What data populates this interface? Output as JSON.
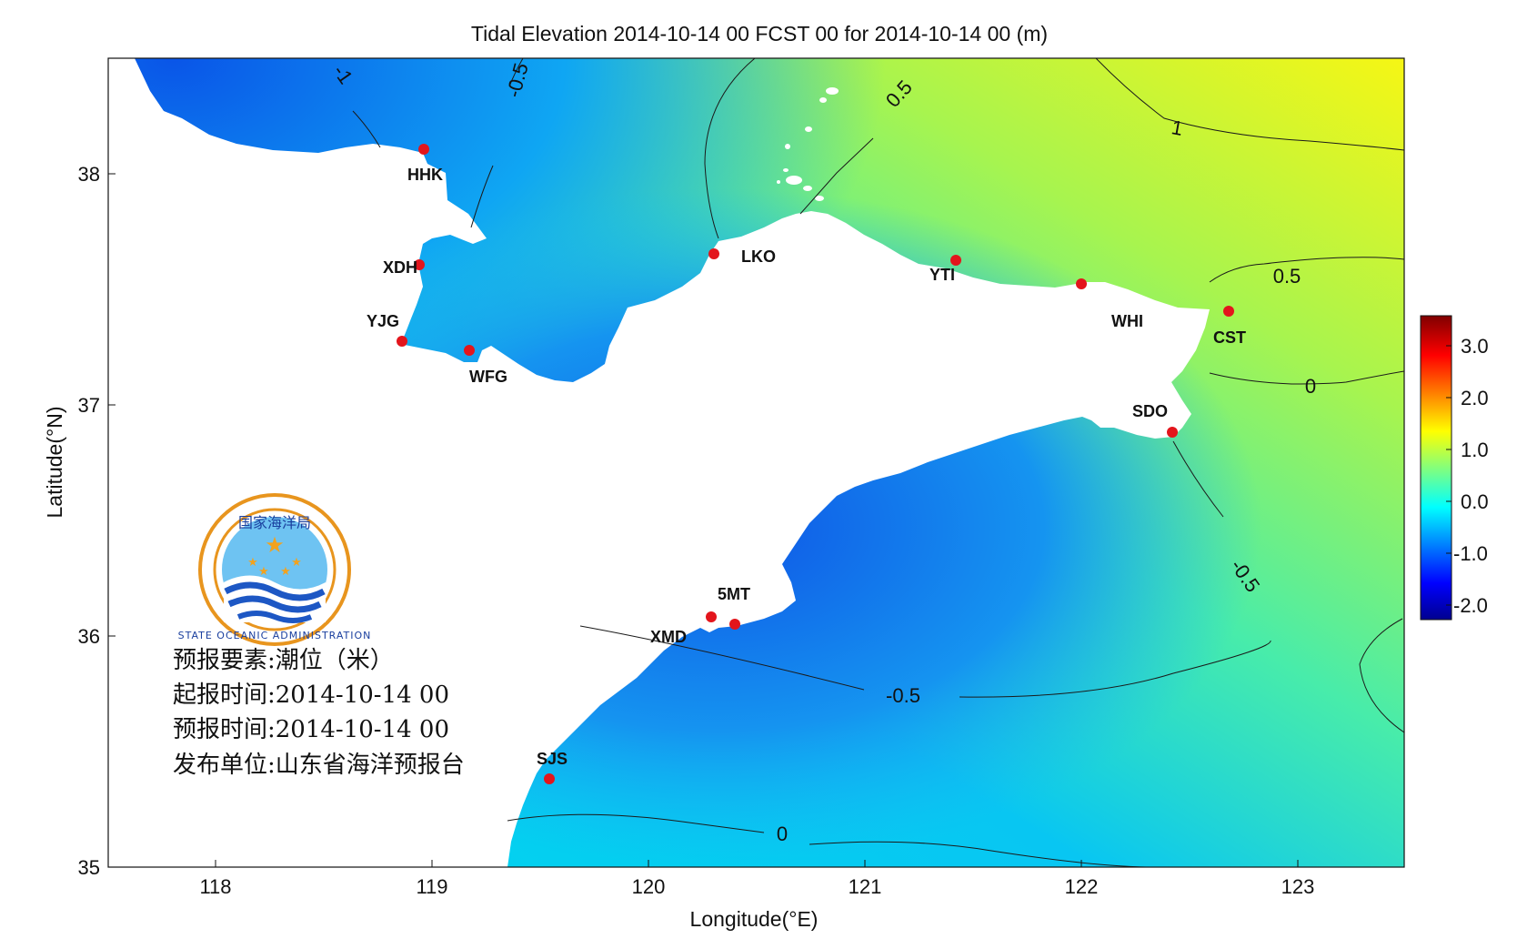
{
  "title": "Tidal Elevation 2014-10-14 00 FCST 00 for 2014-10-14 00 (m)",
  "axes": {
    "xlabel": "Longitude(°E)",
    "ylabel": "Latitude(°N)",
    "xticks": [
      "118",
      "119",
      "120",
      "121",
      "122",
      "123"
    ],
    "yticks": [
      "38",
      "37",
      "36",
      "35"
    ]
  },
  "colorbar": {
    "ticks": [
      "3.0",
      "2.0",
      "1.0",
      "0.0",
      "-1.0",
      "-2.0"
    ],
    "colormap": "jet"
  },
  "stations": [
    {
      "code": "HHK"
    },
    {
      "code": "XDH"
    },
    {
      "code": "YJG"
    },
    {
      "code": "WFG"
    },
    {
      "code": "LKO"
    },
    {
      "code": "YTI"
    },
    {
      "code": "WHI"
    },
    {
      "code": "CST"
    },
    {
      "code": "SDO"
    },
    {
      "code": "5MT"
    },
    {
      "code": "XMD"
    },
    {
      "code": "SJS"
    }
  ],
  "contour_labels": [
    {
      "text": "-1"
    },
    {
      "text": "-0.5"
    },
    {
      "text": "0.5"
    },
    {
      "text": "1"
    },
    {
      "text": "0.5"
    },
    {
      "text": "0"
    },
    {
      "text": "-0.5"
    },
    {
      "text": "-0.5"
    },
    {
      "text": "0"
    }
  ],
  "info_block": {
    "element": "预报要素:潮位（米）",
    "start_time": "起报时间:2014-10-14 00",
    "forecast_time": "预报时间:2014-10-14 00",
    "publisher": "发布单位:山东省海洋预报台"
  },
  "logo": {
    "top_text": "国家海洋局",
    "ring_text": "STATE OCEANIC ADMINISTRATION"
  },
  "colors": {
    "station_marker": "#e3151c",
    "land": "#ffffff",
    "logo_ring": "#e8951e",
    "logo_blue": "#1d57c4"
  }
}
